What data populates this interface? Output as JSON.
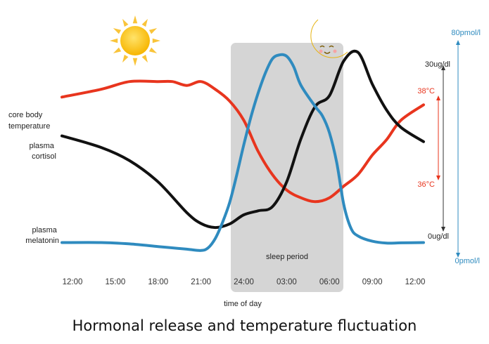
{
  "caption": "Hormonal release and temperature fluctuation",
  "chart_data": {
    "type": "line",
    "xlabel": "time of day",
    "x_ticks": [
      "12:00",
      "15:00",
      "18:00",
      "21:00",
      "24:00",
      "03:00",
      "06:00",
      "09:00",
      "12:00"
    ],
    "shaded_region": {
      "label": "sleep period",
      "from": "23:00",
      "to": "06:30"
    },
    "series": [
      {
        "name": "core body temperature",
        "color": "#e8351e",
        "axis": "temperature",
        "x": [
          "12:00",
          "14:00",
          "16:00",
          "18:00",
          "19:00",
          "20:00",
          "21:00",
          "22:00",
          "23:00",
          "24:00",
          "01:00",
          "02:00",
          "03:00",
          "04:00",
          "05:00",
          "06:00",
          "07:00",
          "08:00",
          "09:00",
          "10:00",
          "11:00",
          "12:00"
        ],
        "values": [
          37.6,
          37.7,
          37.8,
          37.8,
          37.8,
          37.75,
          37.8,
          37.7,
          37.55,
          37.3,
          36.9,
          36.6,
          36.4,
          36.3,
          36.25,
          36.3,
          36.45,
          36.6,
          36.85,
          37.05,
          37.3,
          37.5
        ]
      },
      {
        "name": "plasma cortisol",
        "color": "#111111",
        "axis": "cortisol",
        "x": [
          "12:00",
          "14:00",
          "16:00",
          "18:00",
          "20:00",
          "21:00",
          "22:00",
          "23:00",
          "24:00",
          "01:00",
          "02:00",
          "03:00",
          "04:00",
          "05:00",
          "06:00",
          "07:00",
          "08:00",
          "09:00",
          "10:00",
          "11:00",
          "12:00"
        ],
        "values": [
          17.5,
          15.5,
          13.2,
          9.5,
          4.2,
          2.3,
          1.6,
          2.2,
          3.8,
          4.5,
          5.2,
          9.5,
          17,
          22.6,
          24.5,
          30.5,
          32,
          26.5,
          22,
          19,
          16.5
        ]
      },
      {
        "name": "plasma melatonin",
        "color": "#2f8bbf",
        "axis": "melatonin",
        "x": [
          "12:00",
          "14:00",
          "16:00",
          "18:00",
          "20:00",
          "21:00",
          "21:30",
          "22:00",
          "22:30",
          "23:00",
          "23:30",
          "24:00",
          "00:30",
          "01:00",
          "01:30",
          "02:00",
          "02:30",
          "03:00",
          "03:30",
          "04:00",
          "05:00",
          "05:30",
          "06:00",
          "06:30",
          "07:00",
          "07:30",
          "08:00",
          "09:00",
          "10:00",
          "11:00",
          "12:00"
        ],
        "values": [
          3.5,
          3.5,
          3,
          2,
          1,
          0.5,
          1.5,
          5,
          11,
          18.5,
          29,
          40.5,
          51,
          60,
          67.5,
          73,
          74.5,
          74,
          70,
          63,
          55,
          51.5,
          45,
          34,
          18,
          9,
          6,
          4,
          3.3,
          3.4,
          3.5
        ]
      }
    ],
    "axes": {
      "temperature": {
        "ticks": [
          "38°C",
          "36°C"
        ],
        "range": [
          35.5,
          38.4
        ],
        "color": "#e8351e"
      },
      "cortisol": {
        "ticks": [
          "30ug/dl",
          "0ug/dl"
        ],
        "range": [
          -4,
          35
        ],
        "color": "#111111"
      },
      "melatonin": {
        "ticks": [
          "80pmol/l",
          "0pmol/l"
        ],
        "range": [
          -3,
          82
        ],
        "color": "#2f8bbf"
      }
    },
    "legend_placement": "left, inline labels",
    "grid": false
  },
  "icons": {
    "sun": "sun-icon",
    "moon": "moon-icon"
  }
}
